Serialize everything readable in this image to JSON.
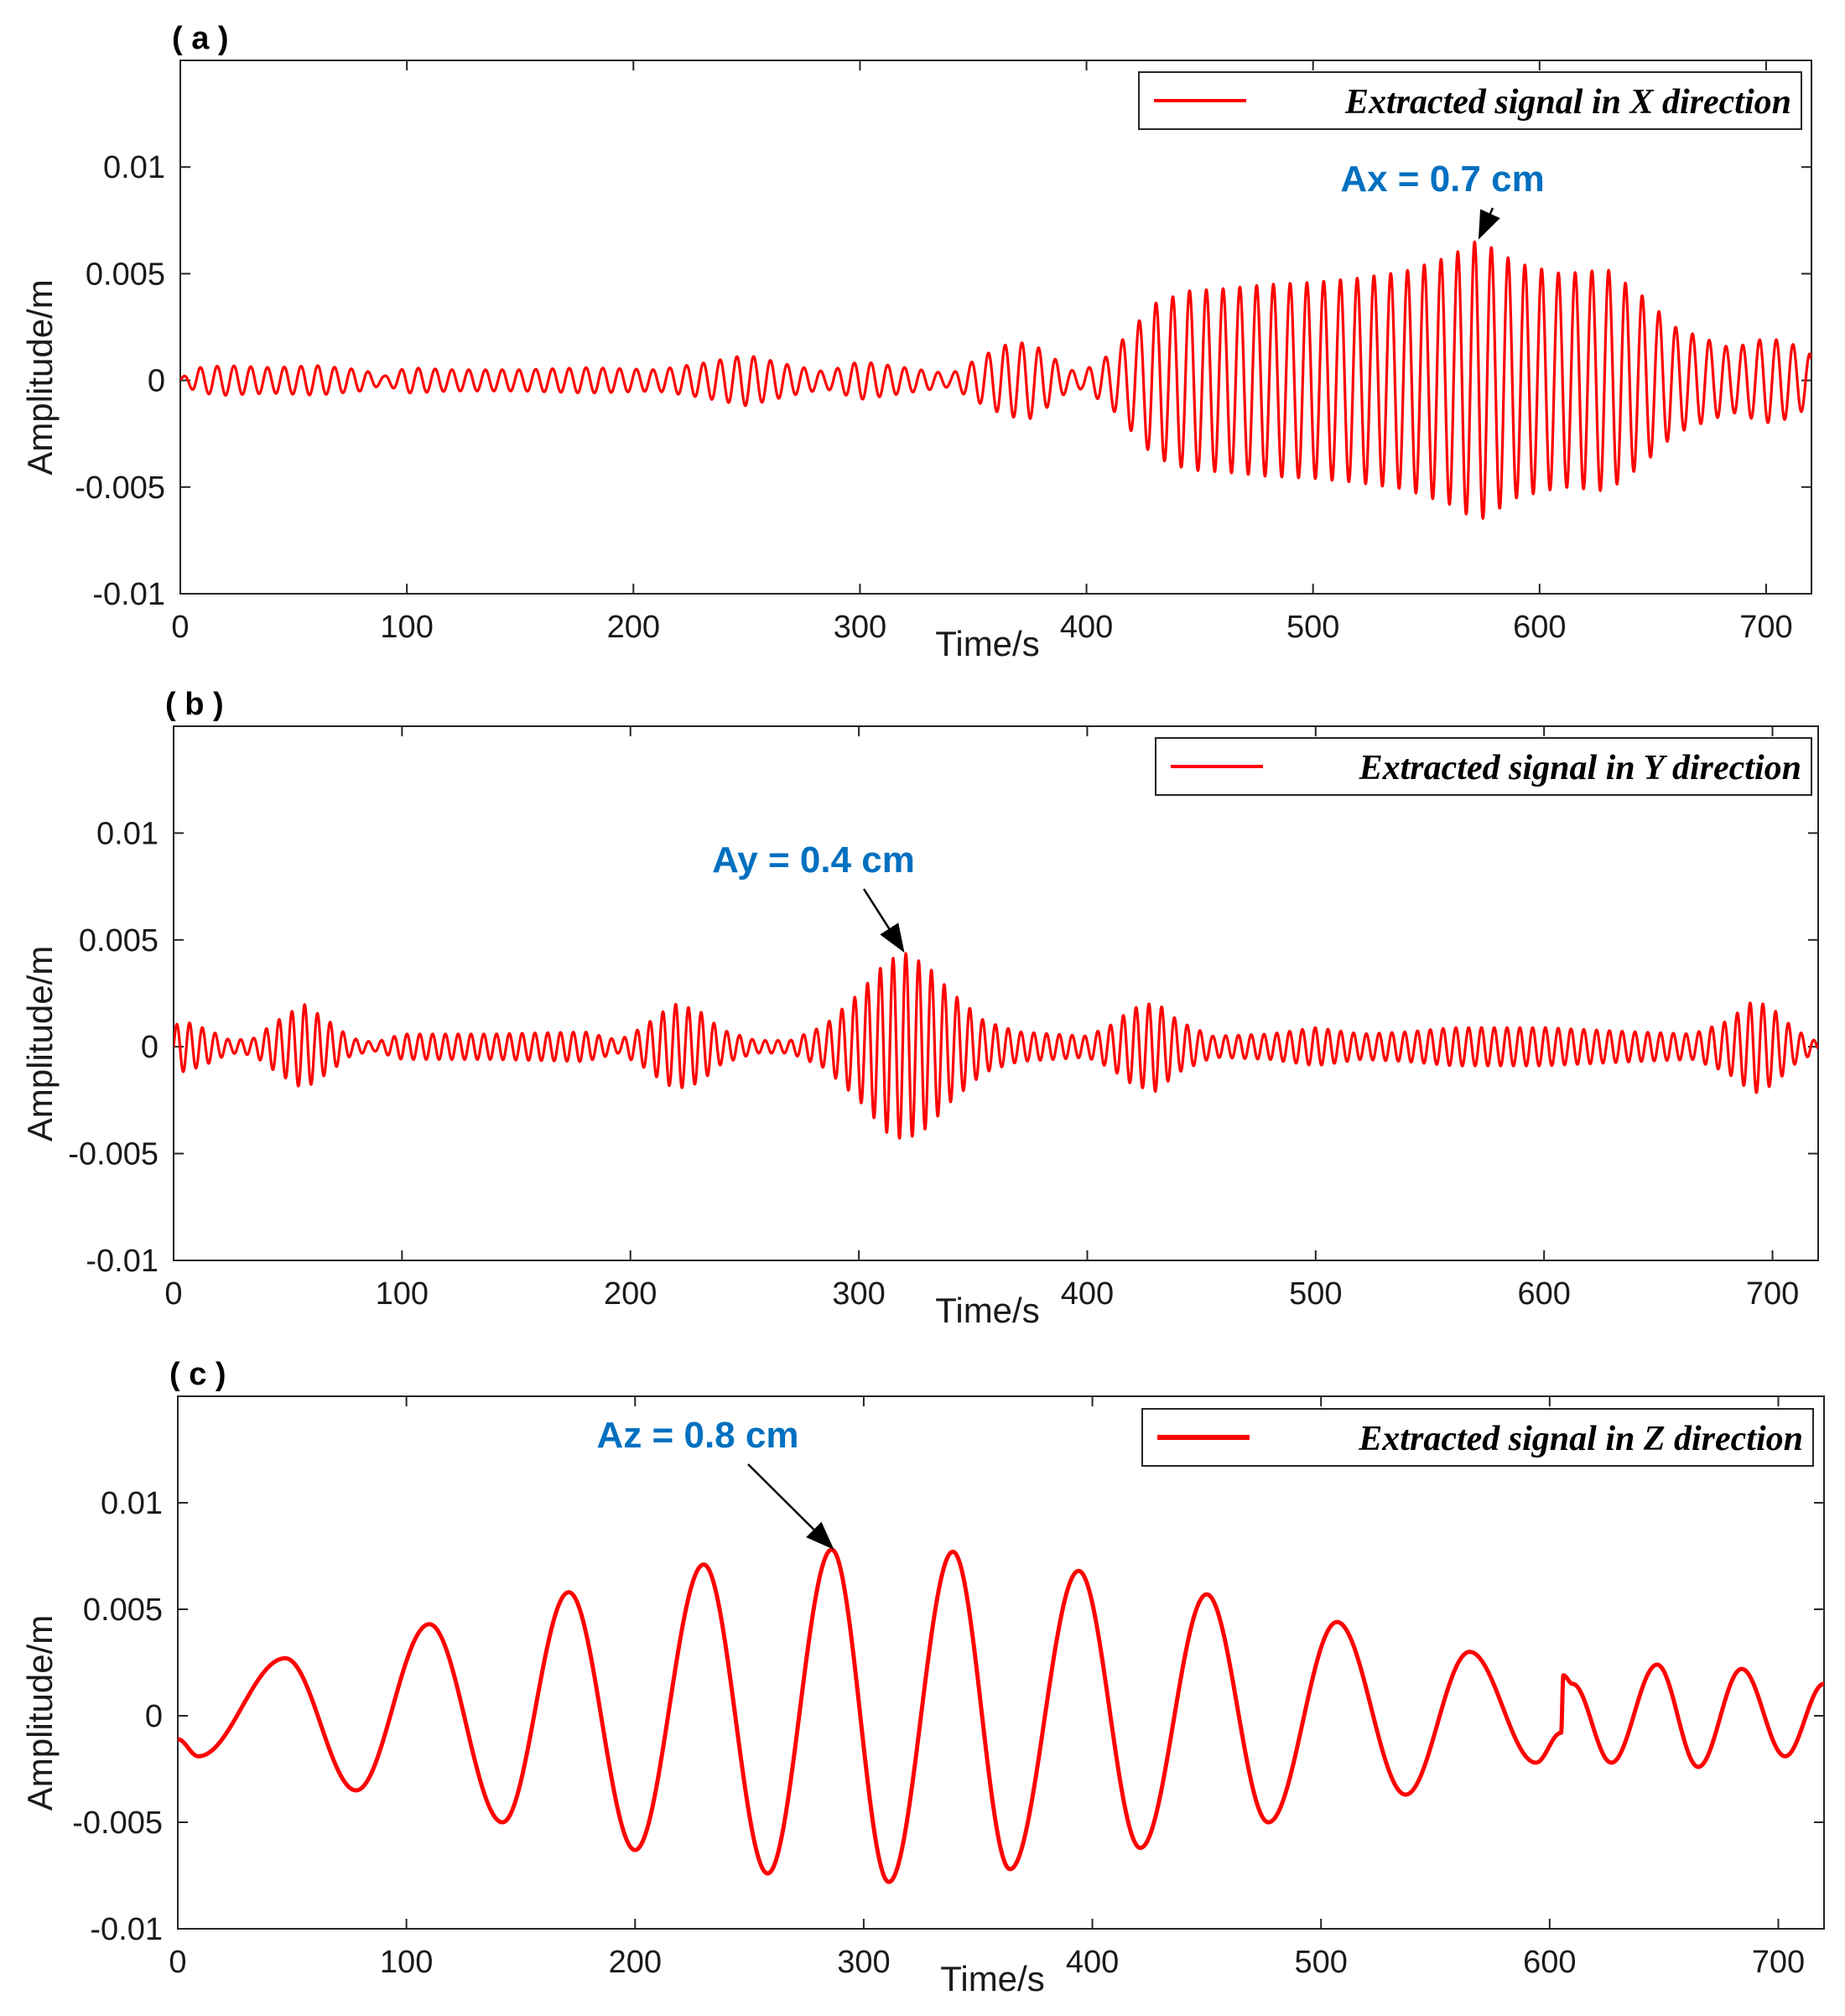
{
  "chart_data": [
    {
      "type": "line",
      "panel_label": "( a )",
      "xlabel": "Time/s",
      "ylabel": "Amplitude/m",
      "xlim": [
        0,
        720
      ],
      "ylim": [
        -0.01,
        0.015
      ],
      "xticks": [
        0,
        100,
        200,
        300,
        400,
        500,
        600,
        700
      ],
      "xtick_labels": [
        "0",
        "100",
        "200",
        "300",
        "400",
        "500",
        "600",
        "700"
      ],
      "yticks": [
        -0.01,
        -0.005,
        0,
        0.005,
        0.01
      ],
      "ytick_labels": [
        "-0.01",
        "-0.005",
        "0",
        "0.005",
        "0.01"
      ],
      "legend": {
        "label": "Extracted signal in X direction",
        "position": "top-right"
      },
      "annotation": {
        "text": "Ax = 0.7 cm",
        "x": 573,
        "y": 0.0066
      },
      "series": [
        {
          "name": "Extracted signal in X direction",
          "color": "#ff0000",
          "period_s": 7.4,
          "phase": 0.3,
          "envelope": {
            "t": [
              0,
              8,
              20,
              40,
              60,
              80,
              90,
              100,
              120,
              150,
              180,
              210,
              230,
              250,
              270,
              285,
              300,
              320,
              340,
              355,
              365,
              375,
              385,
              392,
              398,
              410,
              420,
              430,
              445,
              460,
              480,
              500,
              520,
              540,
              560,
              573,
              590,
              610,
              630,
              645,
              660,
              672,
              685,
              700,
              710,
              720
            ],
            "a": [
              0.0001,
              0.0006,
              0.0007,
              0.0006,
              0.0007,
              0.0005,
              0.0002,
              0.0006,
              0.0005,
              0.0005,
              0.0006,
              0.0005,
              0.0008,
              0.0012,
              0.0007,
              0.0004,
              0.0009,
              0.0006,
              0.0003,
              0.0012,
              0.0017,
              0.0018,
              0.0011,
              0.0005,
              0.0004,
              0.0012,
              0.0024,
              0.0036,
              0.0042,
              0.0043,
              0.0045,
              0.0046,
              0.0048,
              0.0051,
              0.0058,
              0.0066,
              0.0055,
              0.005,
              0.0052,
              0.004,
              0.0025,
              0.002,
              0.0015,
              0.002,
              0.0018,
              0.0012
            ]
          }
        }
      ]
    },
    {
      "type": "line",
      "panel_label": "( b )",
      "xlabel": "Time/s",
      "ylabel": "Amplitude/m",
      "xlim": [
        0,
        720
      ],
      "ylim": [
        -0.01,
        0.015
      ],
      "xticks": [
        0,
        100,
        200,
        300,
        400,
        500,
        600,
        700
      ],
      "xtick_labels": [
        "0",
        "100",
        "200",
        "300",
        "400",
        "500",
        "600",
        "700"
      ],
      "yticks": [
        -0.01,
        -0.005,
        0,
        0.005,
        0.01
      ],
      "ytick_labels": [
        "-0.01",
        "-0.005",
        "0",
        "0.005",
        "0.01"
      ],
      "legend": {
        "label": "Extracted signal in Y direction",
        "position": "top-right"
      },
      "annotation": {
        "text": "Ay = 0.4 cm",
        "x": 320,
        "y": 0.0044
      },
      "series": [
        {
          "name": "Extracted signal in Y direction",
          "color": "#ff0000",
          "period_s": 5.6,
          "phase": 0.0,
          "envelope": {
            "t": [
              0,
              5,
              15,
              25,
              35,
              45,
              57,
              68,
              78,
              88,
              100,
              140,
              180,
              195,
              205,
              215,
              220,
              230,
              240,
              255,
              270,
              285,
              300,
              312,
              320,
              330,
              340,
              355,
              370,
              385,
              400,
              410,
              420,
              430,
              440,
              455,
              480,
              500,
              520,
              540,
              560,
              600,
              640,
              665,
              680,
              692,
              700,
              710,
              720
            ],
            "a": [
              0.001,
              0.0012,
              0.0008,
              0.0003,
              0.0004,
              0.0012,
              0.002,
              0.0012,
              0.0004,
              0.0002,
              0.0006,
              0.0006,
              0.0007,
              0.0003,
              0.0009,
              0.0017,
              0.002,
              0.0017,
              0.0008,
              0.0003,
              0.0003,
              0.001,
              0.0025,
              0.004,
              0.0044,
              0.0038,
              0.0026,
              0.0012,
              0.0007,
              0.0006,
              0.0005,
              0.001,
              0.0018,
              0.0021,
              0.0012,
              0.0005,
              0.0006,
              0.0009,
              0.0006,
              0.0007,
              0.0009,
              0.0009,
              0.0007,
              0.0006,
              0.0012,
              0.0022,
              0.0018,
              0.0008,
              0.0002
            ]
          }
        }
      ]
    },
    {
      "type": "line",
      "panel_label": "( c )",
      "xlabel": "Time/s",
      "ylabel": "Amplitude/m",
      "xlim": [
        0,
        720
      ],
      "ylim": [
        -0.01,
        0.015
      ],
      "xticks": [
        0,
        100,
        200,
        300,
        400,
        500,
        600,
        700
      ],
      "xtick_labels": [
        "0",
        "100",
        "200",
        "300",
        "400",
        "500",
        "600",
        "700"
      ],
      "yticks": [
        -0.01,
        -0.005,
        0,
        0.005,
        0.01
      ],
      "ytick_labels": [
        "-0.01",
        "-0.005",
        "0",
        "0.005",
        "0.01"
      ],
      "legend": {
        "label": "Extracted signal in Z direction",
        "position": "top-right"
      },
      "annotation": {
        "text": "Az = 0.8 cm",
        "x": 287,
        "y": 0.0078
      },
      "series": [
        {
          "name": "Extracted signal in Z direction",
          "color": "#ff0000",
          "extrema": [
            [
              0,
              -0.0011
            ],
            [
              9,
              -0.0019
            ],
            [
              47,
              0.0027
            ],
            [
              78,
              -0.0035
            ],
            [
              110,
              0.0043
            ],
            [
              142,
              -0.005
            ],
            [
              171,
              0.0058
            ],
            [
              200,
              -0.0063
            ],
            [
              230,
              0.0071
            ],
            [
              258,
              -0.0074
            ],
            [
              286,
              0.0078
            ],
            [
              311,
              -0.0078
            ],
            [
              339,
              0.0077
            ],
            [
              364,
              -0.0072
            ],
            [
              394,
              0.0068
            ],
            [
              421,
              -0.0062
            ],
            [
              450,
              0.0057
            ],
            [
              477,
              -0.005
            ],
            [
              507,
              0.0044
            ],
            [
              537,
              -0.0037
            ],
            [
              565,
              0.003
            ],
            [
              594,
              -0.0022
            ],
            [
              605,
              -0.0008
            ],
            [
              606,
              0.0019
            ],
            [
              610,
              0.0015
            ],
            [
              627,
              -0.0022
            ],
            [
              647,
              0.0024
            ],
            [
              665,
              -0.0024
            ],
            [
              684,
              0.0022
            ],
            [
              703,
              -0.0019
            ],
            [
              720,
              0.0015
            ]
          ]
        }
      ]
    }
  ]
}
